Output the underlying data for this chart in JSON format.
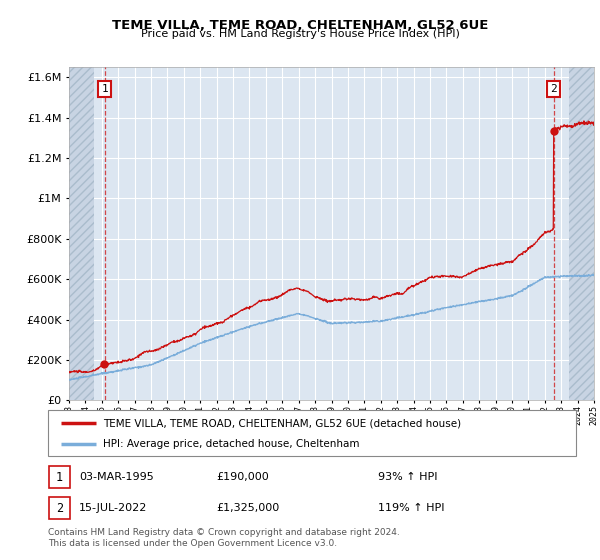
{
  "title": "TEME VILLA, TEME ROAD, CHELTENHAM, GL52 6UE",
  "subtitle": "Price paid vs. HM Land Registry's House Price Index (HPI)",
  "ylim": [
    0,
    1650000
  ],
  "yticks": [
    0,
    200000,
    400000,
    600000,
    800000,
    1000000,
    1200000,
    1400000,
    1600000
  ],
  "ytick_labels": [
    "£0",
    "£200K",
    "£400K",
    "£600K",
    "£800K",
    "£1M",
    "£1.2M",
    "£1.4M",
    "£1.6M"
  ],
  "xmin_year": 1993,
  "xmax_year": 2025,
  "xticks": [
    1993,
    1994,
    1995,
    1996,
    1997,
    1998,
    1999,
    2000,
    2001,
    2002,
    2003,
    2004,
    2005,
    2006,
    2007,
    2008,
    2009,
    2010,
    2011,
    2012,
    2013,
    2014,
    2015,
    2016,
    2017,
    2018,
    2019,
    2020,
    2021,
    2022,
    2023,
    2024,
    2025
  ],
  "hpi_color": "#7aadda",
  "price_color": "#cc1111",
  "background_color": "#dce6f1",
  "grid_color": "#ffffff",
  "sale1_year": 1995.17,
  "sale1_price": 190000,
  "sale2_year": 2022.54,
  "sale2_price": 1325000,
  "legend_label1": "TEME VILLA, TEME ROAD, CHELTENHAM, GL52 6UE (detached house)",
  "legend_label2": "HPI: Average price, detached house, Cheltenham",
  "note1_date": "03-MAR-1995",
  "note1_price": "£190,000",
  "note1_hpi": "93% ↑ HPI",
  "note2_date": "15-JUL-2022",
  "note2_price": "£1,325,000",
  "note2_hpi": "119% ↑ HPI",
  "footer": "Contains HM Land Registry data © Crown copyright and database right 2024.\nThis data is licensed under the Open Government Licence v3.0.",
  "hatch_left_end": 1994.5,
  "hatch_right_start": 2023.5
}
